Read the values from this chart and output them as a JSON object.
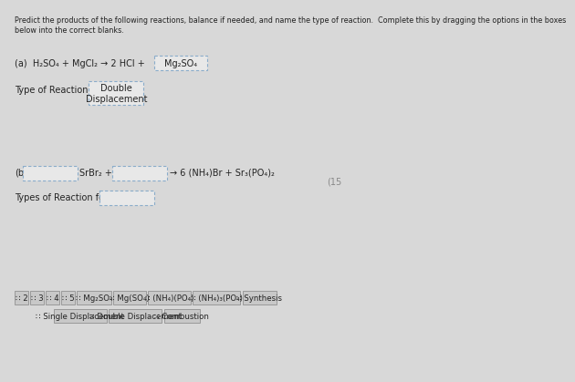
{
  "bg_color": "#d8d8d8",
  "title_line1": "Predict the products of the following reactions, balance if needed, and name the type of reaction.  Complete this by dragging the options in the boxes",
  "title_line2": "below into the correct blanks.",
  "reaction_a_text": "(a)  H₂SO₄ + MgCl₂ → 2 HCl + ",
  "reaction_a_box": "Mg₂SO₄",
  "type_a_label": "Type of Reaction for (a) :",
  "type_a_box": "Double\nDisplacement",
  "reaction_b_prefix": "(b)",
  "reaction_b_mid": "SrBr₂ + 2",
  "reaction_b_after": "→ 6 (NH₄)Br + Sr₃(PO₄)₂",
  "type_b_label": "Types of Reaction for (b):",
  "watermark": "(15",
  "opt1": [
    "∷ 2",
    "∷ 3",
    "∷ 4",
    "∷ 5",
    "∷ Mg₂SO₄",
    "∷ Mg(SO₄)",
    "∷ (NH₄)(PO₄)",
    "∷ (NH₄)₃(PO₄)",
    "∷ Synthesis"
  ],
  "opt2": [
    "∷ Single Displacement",
    "∷ Double Displacement",
    "∷ Combustion"
  ],
  "dash_color": "#8aacca",
  "box_bg": "#e8e8e8",
  "opt_bg": "#c8c8c8",
  "opt_border": "#999999",
  "text_color": "#222222",
  "fs_title": 5.8,
  "fs_main": 7.0,
  "fs_opt": 6.2
}
